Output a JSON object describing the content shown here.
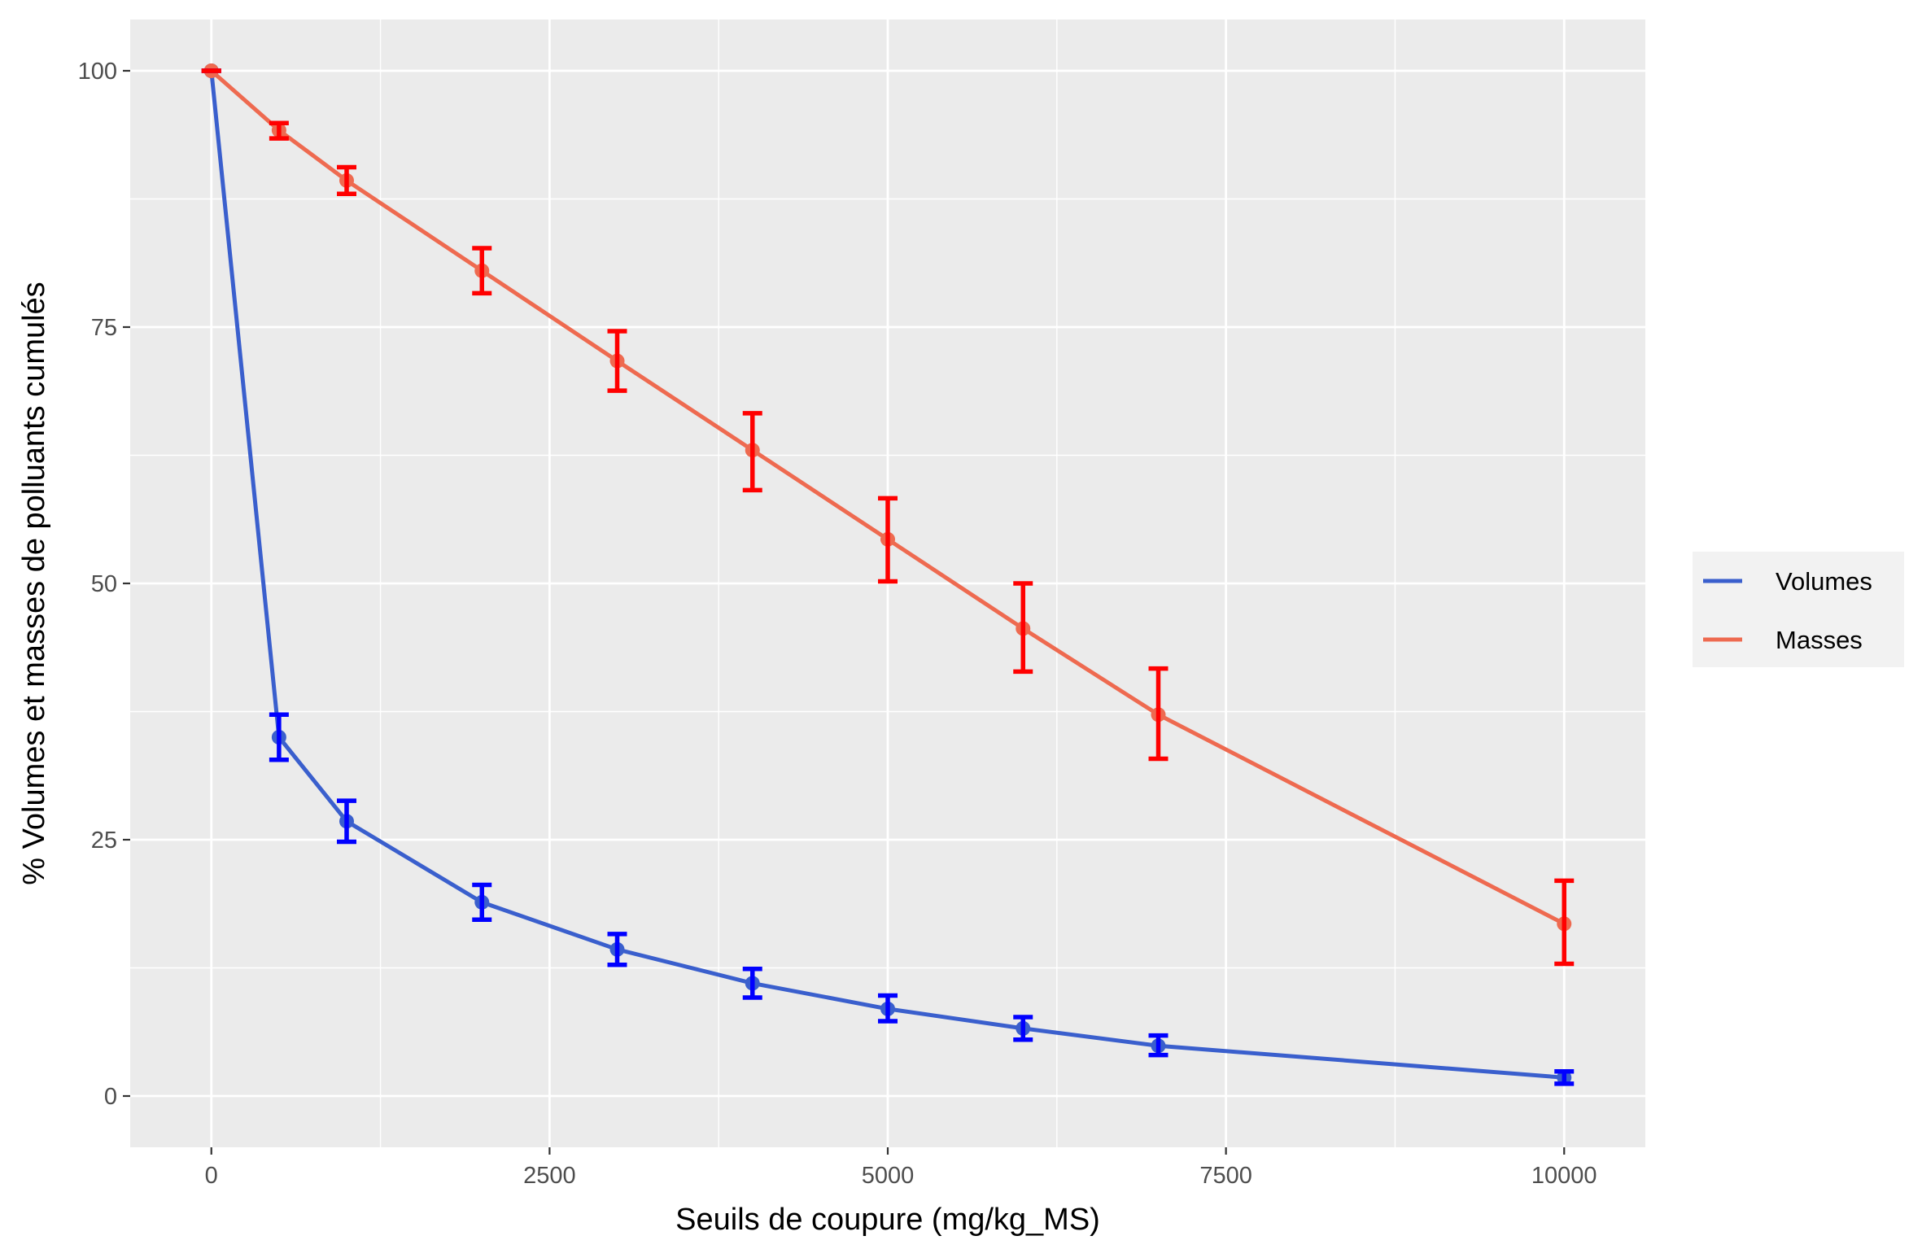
{
  "chart_data": {
    "type": "line",
    "title": "",
    "xlabel": "Seuils de coupure (mg/kg_MS)",
    "ylabel": "% Volumes et masses de polluants cumulés",
    "x": [
      0,
      500,
      1000,
      2000,
      3000,
      4000,
      5000,
      6000,
      7000,
      10000
    ],
    "xlim": [
      -600,
      10600
    ],
    "ylim": [
      -5,
      105
    ],
    "x_ticks": [
      0,
      2500,
      5000,
      7500,
      10000
    ],
    "x_tick_labels": [
      "0",
      "2500",
      "5000",
      "7500",
      "10000"
    ],
    "y_ticks": [
      0,
      25,
      50,
      75,
      100
    ],
    "y_tick_labels": [
      "0",
      "25",
      "50",
      "75",
      "100"
    ],
    "grid": true,
    "legend_position": "right",
    "series": [
      {
        "name": "Volumes",
        "color": "#3a5fcd",
        "errorbar_color": "#0000ff",
        "values": [
          100,
          35,
          26.8,
          18.9,
          14.3,
          11.0,
          8.5,
          6.6,
          4.9,
          1.8
        ],
        "error_low": [
          100,
          32.8,
          24.8,
          17.2,
          12.8,
          9.6,
          7.3,
          5.5,
          4.0,
          1.2
        ],
        "error_high": [
          100,
          37.2,
          28.8,
          20.6,
          15.8,
          12.4,
          9.8,
          7.7,
          5.9,
          2.4
        ]
      },
      {
        "name": "Masses",
        "color": "#ee6a50",
        "errorbar_color": "#ff0000",
        "values": [
          100,
          94.2,
          89.3,
          80.5,
          71.7,
          63.0,
          54.3,
          45.6,
          37.2,
          16.8
        ],
        "error_low": [
          100,
          93.4,
          88.0,
          78.3,
          68.8,
          59.1,
          50.2,
          41.4,
          32.9,
          12.9
        ],
        "error_high": [
          100,
          94.9,
          90.6,
          82.7,
          74.6,
          66.6,
          58.3,
          50.0,
          41.7,
          21.0
        ]
      }
    ]
  }
}
